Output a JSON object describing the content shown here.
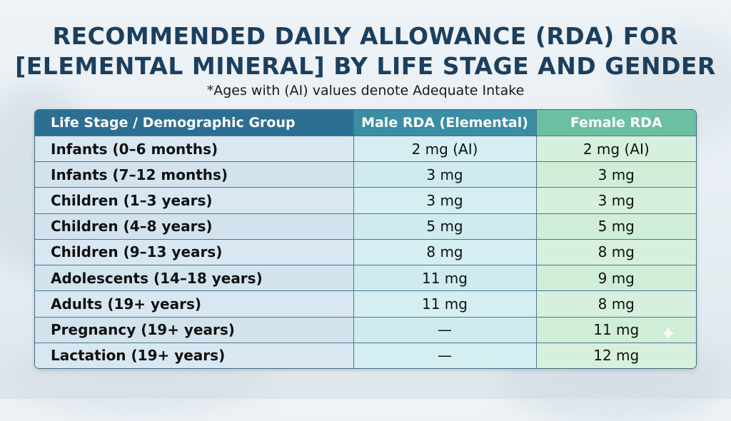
{
  "title_line1": "RECOMMENDED DAILY ALLOWANCE (RDA) FOR",
  "title_line2": "[ELEMENTAL MINERAL] BY LIFE STAGE AND GENDER",
  "subtitle": "*Ages with (AI) values denote Adequate Intake",
  "table": {
    "headers": [
      "Life Stage / Demographic Group",
      "Male RDA (Elemental)",
      "Female RDA"
    ],
    "rows": [
      [
        "Infants (0–6 months)",
        "2 mg (AI)",
        "2 mg (AI)"
      ],
      [
        "Infants (7–12 months)",
        "3 mg",
        "3 mg"
      ],
      [
        "Children (1–3 years)",
        "3 mg",
        "3 mg"
      ],
      [
        "Children (4–8 years)",
        "5 mg",
        "5 mg"
      ],
      [
        "Children (9–13 years)",
        "8 mg",
        "8 mg"
      ],
      [
        "Adolescents (14–18 years)",
        "11 mg",
        "9 mg"
      ],
      [
        "Adults (19+ years)",
        "11 mg",
        "8 mg"
      ],
      [
        "Pregnancy (19+ years)",
        "—",
        "11 mg"
      ],
      [
        "Lactation (19+ years)",
        "—",
        "12 mg"
      ]
    ]
  },
  "colors": {
    "title": "#1c3f5e",
    "header_col1": "#2c6f93",
    "header_col2": "#3a8ea3",
    "header_col3": "#6cc0a2"
  },
  "icons": {
    "corner": "sparkle-icon"
  }
}
